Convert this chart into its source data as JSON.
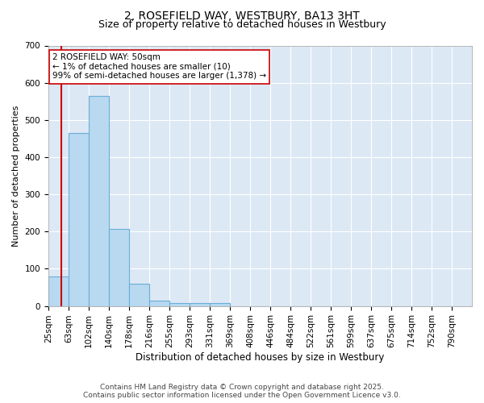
{
  "title1": "2, ROSEFIELD WAY, WESTBURY, BA13 3HT",
  "title2": "Size of property relative to detached houses in Westbury",
  "xlabel": "Distribution of detached houses by size in Westbury",
  "ylabel": "Number of detached properties",
  "bar_values": [
    80,
    465,
    565,
    207,
    60,
    15,
    8,
    8,
    7,
    0,
    0,
    0,
    0,
    0,
    0,
    0,
    0,
    0,
    0,
    0,
    0
  ],
  "categories": [
    "25sqm",
    "63sqm",
    "102sqm",
    "140sqm",
    "178sqm",
    "216sqm",
    "255sqm",
    "293sqm",
    "331sqm",
    "369sqm",
    "408sqm",
    "446sqm",
    "484sqm",
    "522sqm",
    "561sqm",
    "599sqm",
    "637sqm",
    "675sqm",
    "714sqm",
    "752sqm",
    "790sqm"
  ],
  "bar_color": "#B8D9F0",
  "bar_edge_color": "#6AAED6",
  "plot_bg_color": "#DDE8F5",
  "fig_bg_color": "#FFFFFF",
  "grid_color": "#FFFFFF",
  "vline_color": "#CC0000",
  "vline_x": 0.65,
  "annotation_text": "2 ROSEFIELD WAY: 50sqm\n← 1% of detached houses are smaller (10)\n99% of semi-detached houses are larger (1,378) →",
  "annotation_box_facecolor": "#FFFFFF",
  "annotation_box_edgecolor": "#CC0000",
  "ylim": [
    0,
    700
  ],
  "yticks": [
    0,
    100,
    200,
    300,
    400,
    500,
    600,
    700
  ],
  "title1_fontsize": 10,
  "title2_fontsize": 9,
  "xlabel_fontsize": 8.5,
  "ylabel_fontsize": 8,
  "tick_fontsize": 7.5,
  "annotation_fontsize": 7.5,
  "footer_fontsize": 6.5,
  "footer": "Contains HM Land Registry data © Crown copyright and database right 2025.\nContains public sector information licensed under the Open Government Licence v3.0."
}
